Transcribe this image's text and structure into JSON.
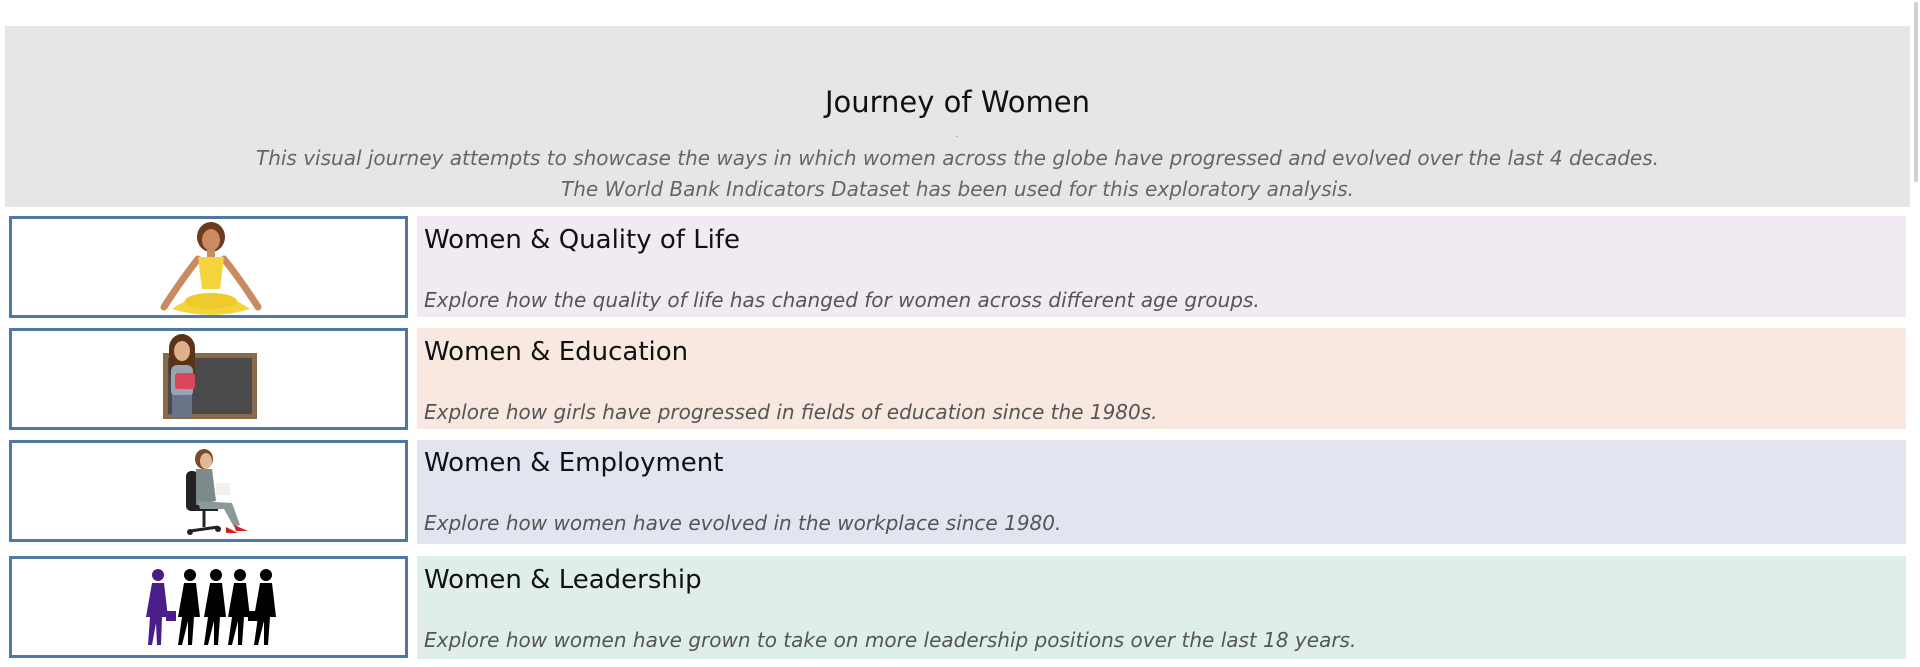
{
  "header": {
    "title": "Journey of Women",
    "subtitle_line1": "This visual journey attempts to showcase the ways in which women across the globe have progressed and evolved over the last 4 decades.",
    "subtitle_line2": "The World Bank Indicators Dataset has been used for this exploratory analysis.",
    "background": "#e6e6e6"
  },
  "sections": [
    {
      "title": "Women & Quality of Life",
      "description": "Explore how the quality of life has changed for women across different age groups.",
      "icon": "meditating-woman-icon",
      "background": "#f1eaf2"
    },
    {
      "title": "Women & Education",
      "description": "Explore how girls have progressed in fields of education since the 1980s.",
      "icon": "teacher-woman-icon",
      "background": "#f9e8df"
    },
    {
      "title": "Women & Employment",
      "description": "Explore how women have evolved in the workplace since 1980.",
      "icon": "office-woman-icon",
      "background": "#e2e5ef"
    },
    {
      "title": "Women & Leadership",
      "description": "Explore how women have grown to take on more leadership positions over the last 18 years.",
      "icon": "women-silhouettes-icon",
      "background": "#e0eeea"
    }
  ],
  "colors": {
    "thumb_border": "#4e79a7"
  }
}
